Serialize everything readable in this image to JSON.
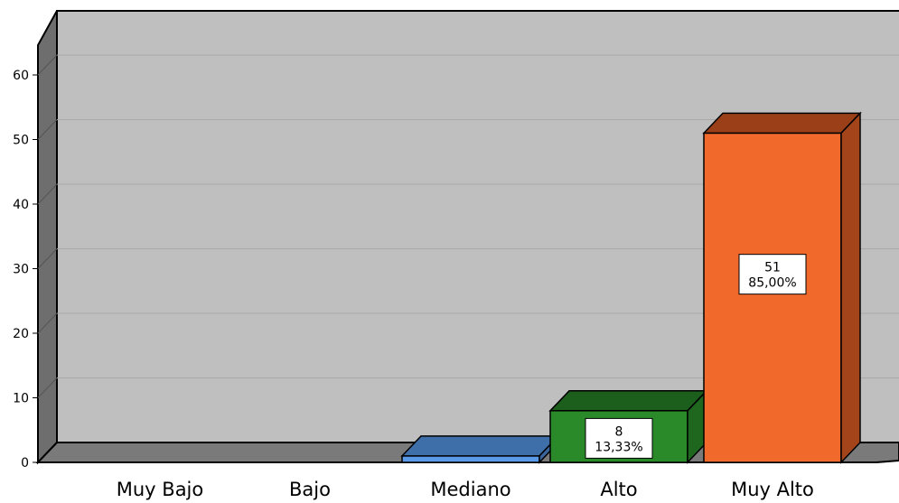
{
  "chart_data": {
    "type": "bar",
    "categories": [
      "Muy Bajo",
      "Bajo",
      "Mediano",
      "Alto",
      "Muy Alto"
    ],
    "values": [
      0,
      0,
      1,
      8,
      51
    ],
    "data_labels": [
      null,
      null,
      null,
      {
        "count": "8",
        "percent": "13,33%"
      },
      {
        "count": "51",
        "percent": "85,00%"
      }
    ],
    "yticks": [
      "0",
      "10",
      "20",
      "30",
      "40",
      "50",
      "60"
    ],
    "ylim": [
      0,
      70
    ],
    "grid": true,
    "style": "3d",
    "colors": {
      "Mediano": {
        "front": "#5a9ae8",
        "top": "#3f6fa8",
        "side": "#3a659c"
      },
      "Alto": {
        "front": "#2a8a2a",
        "top": "#1c5e1c",
        "side": "#1f661f"
      },
      "Muy Alto": {
        "front": "#f2692c",
        "top": "#9a3f18",
        "side": "#a3441b"
      },
      "wall": "#bfbfbf",
      "floor": "#7a7a7a",
      "left_wall": "#6e6e6e"
    }
  }
}
